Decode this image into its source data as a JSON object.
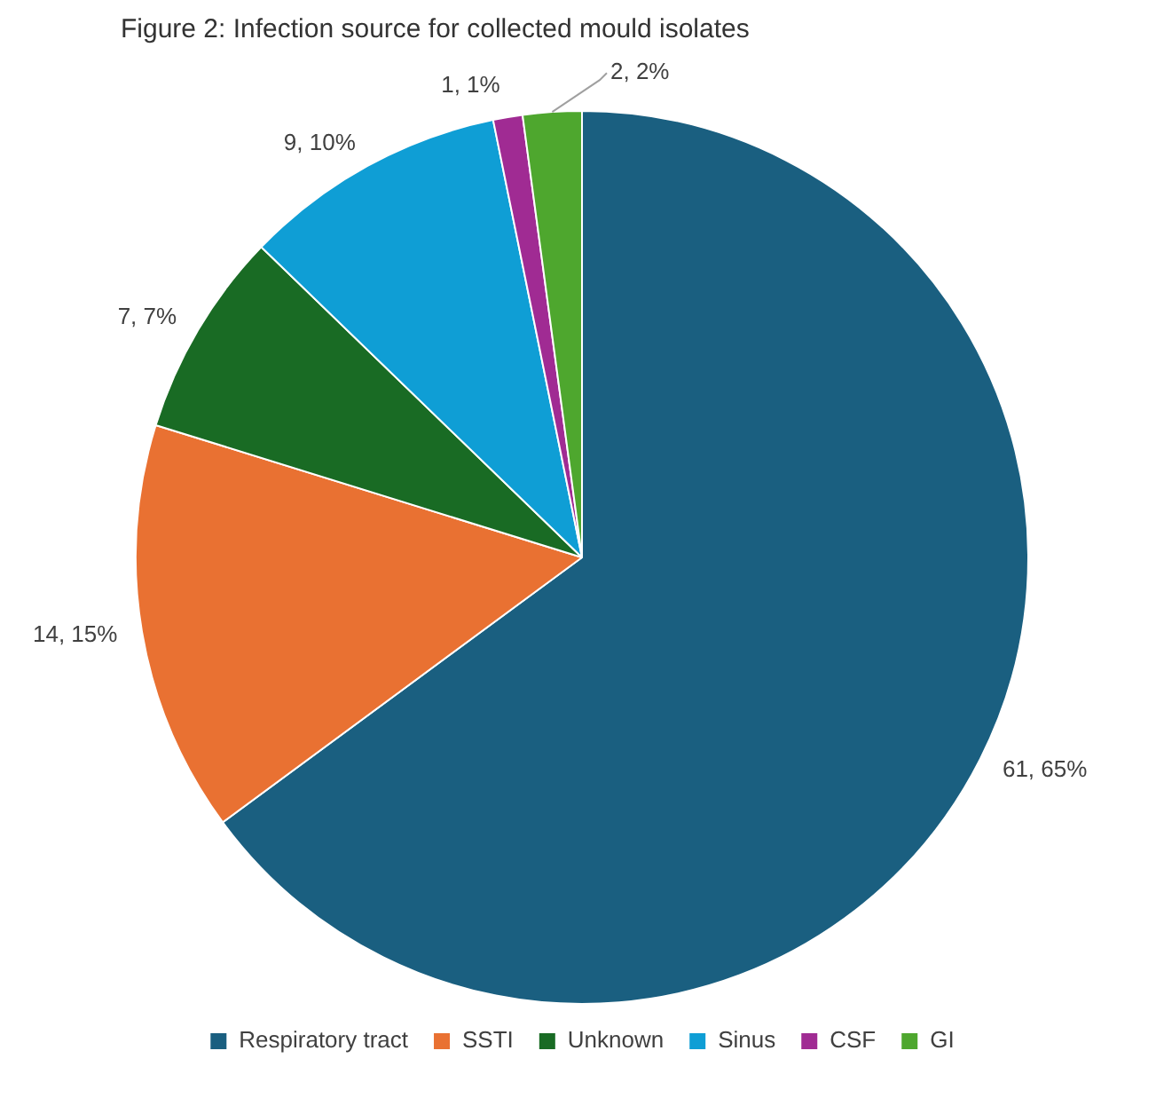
{
  "chart_data": {
    "type": "pie",
    "title": "Figure 2: Infection source for collected mould isolates",
    "categories": [
      "Respiratory tract",
      "SSTI",
      "Unknown",
      "Sinus",
      "CSF",
      "GI"
    ],
    "values": [
      61,
      14,
      7,
      9,
      1,
      2
    ],
    "value_labels": [
      "61, 65%",
      "14, 15%",
      "7, 7%",
      "9, 10%",
      "1, 1%",
      "2, 2%"
    ],
    "colors": [
      "#1a5f80",
      "#e97132",
      "#196b24",
      "#0f9ed5",
      "#a02b93",
      "#4ea72e"
    ],
    "legend": "bottom"
  }
}
